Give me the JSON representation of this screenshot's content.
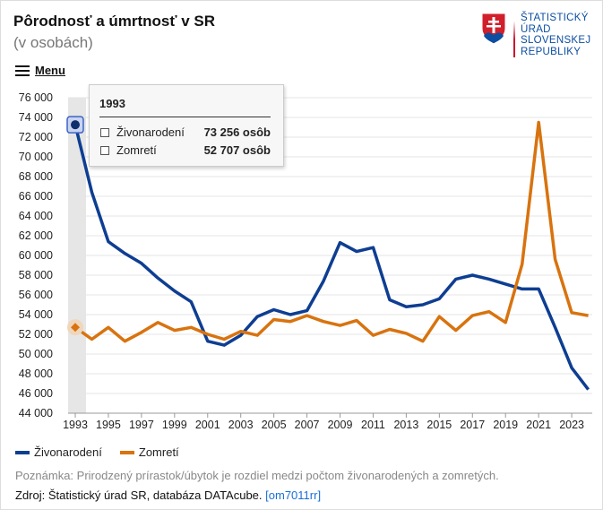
{
  "header": {
    "title": "Pôrodnosť a úmrtnosť v SR",
    "subtitle": "(v osobách)",
    "menu_label": "Menu"
  },
  "logo": {
    "lines": [
      "ŠTATISTICKÝ",
      "ÚRAD",
      "SLOVENSKEJ",
      "REPUBLIKY"
    ]
  },
  "tooltip": {
    "year": "1993",
    "rows": [
      {
        "label": "Živonarodení",
        "value": "73 256 osôb"
      },
      {
        "label": "Zomretí",
        "value": "52 707 osôb"
      }
    ]
  },
  "colors": {
    "births": "#0e3e92",
    "deaths": "#d8730f"
  },
  "chart_data": {
    "type": "line",
    "title": "Pôrodnosť a úmrtnosť v SR",
    "subtitle": "(v osobách)",
    "x": [
      1993,
      1994,
      1995,
      1996,
      1997,
      1998,
      1999,
      2000,
      2001,
      2002,
      2003,
      2004,
      2005,
      2006,
      2007,
      2008,
      2009,
      2010,
      2011,
      2012,
      2013,
      2014,
      2015,
      2016,
      2017,
      2018,
      2019,
      2020,
      2021,
      2022,
      2023,
      2024
    ],
    "series": [
      {
        "name": "Živonarodení",
        "values": [
          73256,
          66400,
          61400,
          60200,
          59200,
          57700,
          56400,
          55300,
          51300,
          50900,
          51900,
          53800,
          54500,
          54000,
          54400,
          57400,
          61300,
          60400,
          60800,
          55500,
          54800,
          55000,
          55600,
          57600,
          58000,
          57600,
          57100,
          56600,
          56600,
          52700,
          48600,
          46400
        ]
      },
      {
        "name": "Zomretí",
        "values": [
          52707,
          51500,
          52700,
          51300,
          52200,
          53200,
          52400,
          52700,
          52000,
          51500,
          52300,
          51900,
          53500,
          53300,
          53900,
          53300,
          52900,
          53400,
          51900,
          52500,
          52100,
          51300,
          53800,
          52400,
          53900,
          54300,
          53200,
          59100,
          73500,
          59600,
          54200,
          53900
        ]
      }
    ],
    "ylim": [
      44000,
      76000
    ],
    "yticks": [
      "44 000",
      "46 000",
      "48 000",
      "50 000",
      "52 000",
      "54 000",
      "56 000",
      "58 000",
      "60 000",
      "62 000",
      "64 000",
      "66 000",
      "68 000",
      "70 000",
      "72 000",
      "74 000",
      "76 000"
    ],
    "xticks": [
      "1993",
      "1995",
      "1997",
      "1999",
      "2001",
      "2003",
      "2005",
      "2007",
      "2009",
      "2011",
      "2013",
      "2015",
      "2017",
      "2019",
      "2021",
      "2023"
    ],
    "legend": "bottom-left",
    "grid": true
  },
  "footer": {
    "note": "Poznámka: Prirodzený prírastok/úbytok je rozdiel medzi počtom živonarodených a zomretých.",
    "source": "Zdroj: Štatistický úrad SR, databáza DATAcube.",
    "link": "[om7011rr]"
  }
}
